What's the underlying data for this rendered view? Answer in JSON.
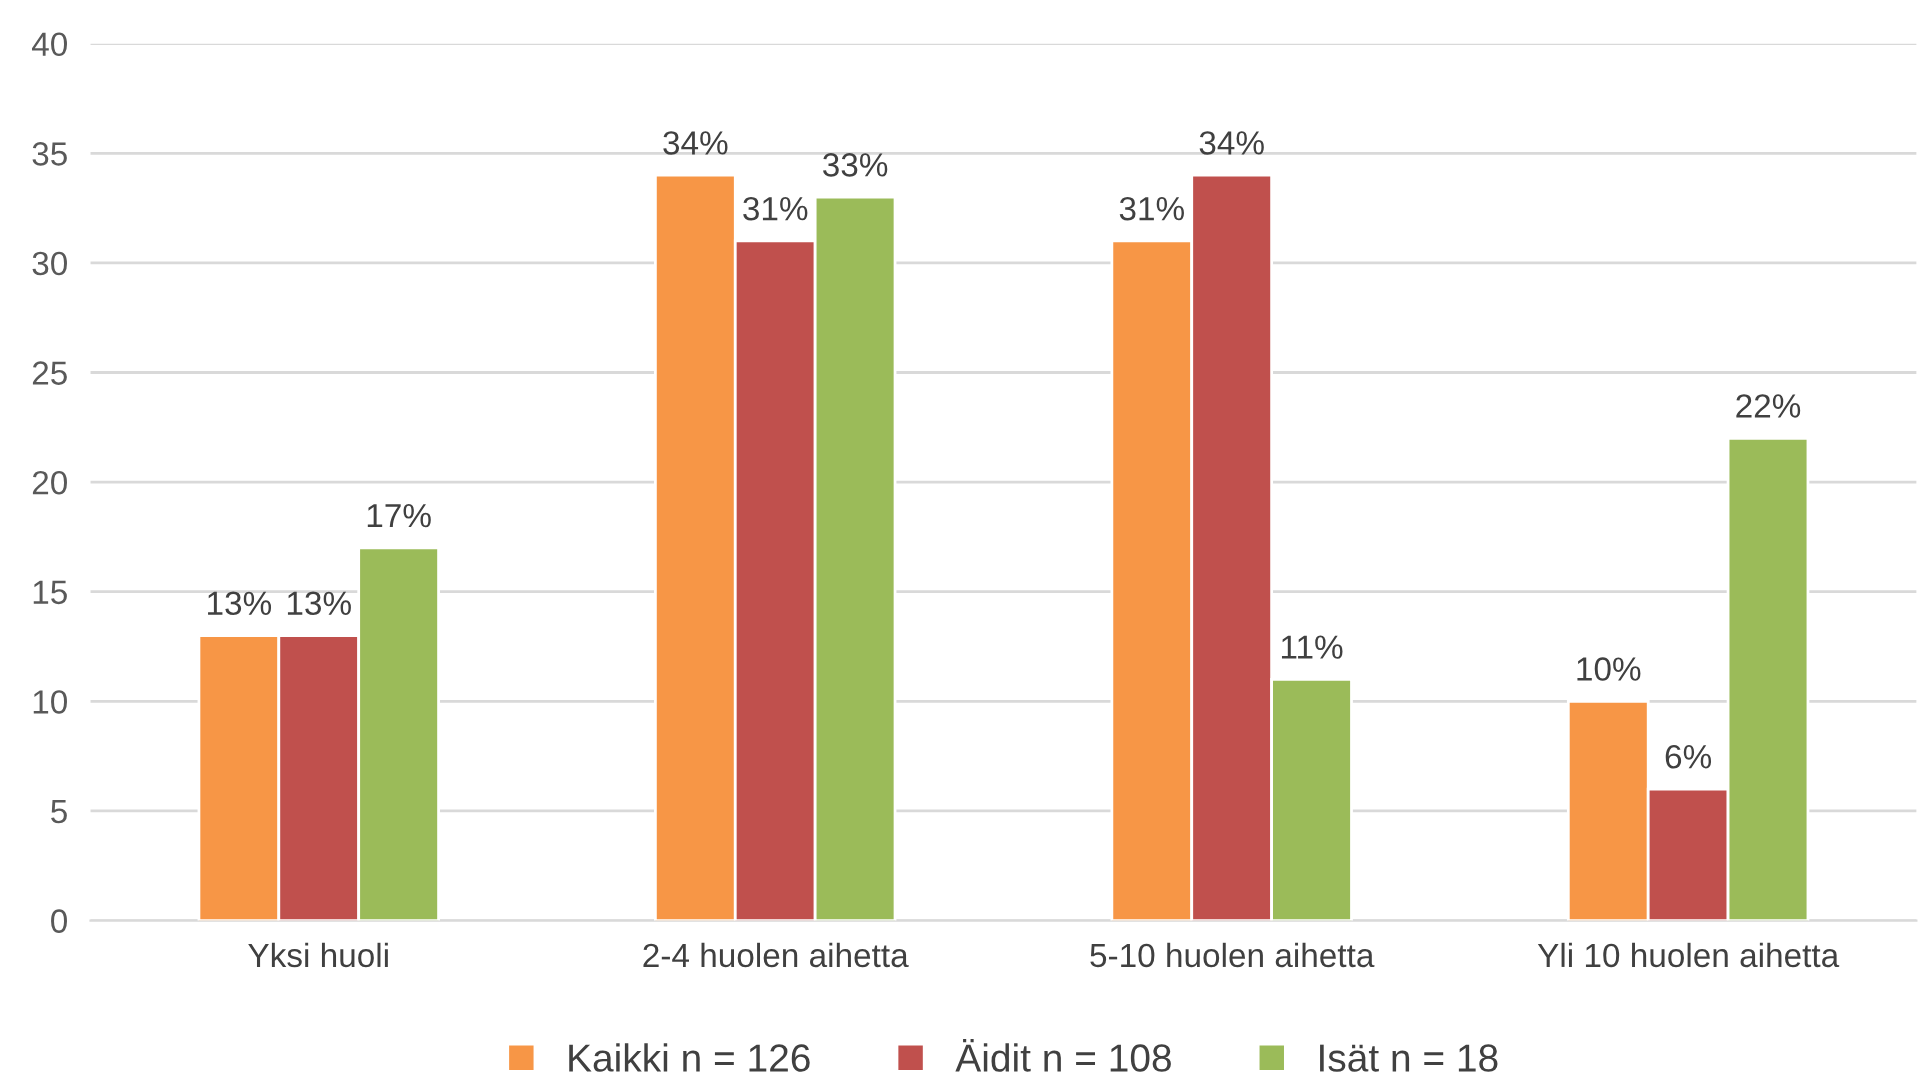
{
  "chart_data": {
    "type": "bar",
    "categories": [
      "Yksi huoli",
      "2-4 huolen aihetta",
      "5-10 huolen aihetta",
      "Yli 10 huolen aihetta"
    ],
    "series": [
      {
        "name": "Kaikki n = 126",
        "color": "#f79646",
        "values": [
          13,
          34,
          31,
          10
        ],
        "value_labels": [
          "13%",
          "34%",
          "31%",
          "10%"
        ]
      },
      {
        "name": "Äidit n = 108",
        "color": "#c0504d",
        "values": [
          13,
          31,
          34,
          6
        ],
        "value_labels": [
          "13%",
          "31%",
          "34%",
          "6%"
        ]
      },
      {
        "name": "Isät n = 18",
        "color": "#9bbb59",
        "values": [
          17,
          33,
          11,
          22
        ],
        "value_labels": [
          "17%",
          "33%",
          "11%",
          "22%"
        ]
      }
    ],
    "ylim": [
      0,
      40
    ],
    "yticks": [
      0,
      5,
      10,
      15,
      20,
      25,
      30,
      35,
      40
    ],
    "grid": "y",
    "legend": "bottom"
  }
}
